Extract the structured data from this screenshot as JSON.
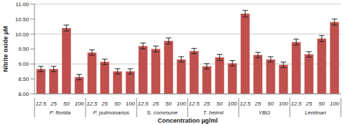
{
  "chart_data": {
    "type": "bar",
    "x_label": "Concentration µg/ml",
    "y_label": "Nitrite oxide µM",
    "categories": [
      "12.5",
      "25",
      "50",
      "100"
    ],
    "groups": [
      {
        "name": "P. florida",
        "values": [
          8.83,
          8.83,
          10.2,
          8.56
        ],
        "errors": [
          0.09,
          0.09,
          0.1,
          0.09
        ]
      },
      {
        "name": "P. pulmonarius",
        "values": [
          9.38,
          9.07,
          8.75,
          8.75
        ],
        "errors": [
          0.09,
          0.09,
          0.09,
          0.09
        ]
      },
      {
        "name": "S. commune",
        "values": [
          9.6,
          9.5,
          9.77,
          9.15
        ],
        "errors": [
          0.1,
          0.1,
          0.1,
          0.09
        ]
      },
      {
        "name": "T. heimii",
        "values": [
          9.43,
          8.92,
          9.22,
          9.02
        ],
        "errors": [
          0.09,
          0.09,
          0.1,
          0.09
        ]
      },
      {
        "name": "YBG",
        "values": [
          10.68,
          9.3,
          9.15,
          8.97
        ],
        "errors": [
          0.11,
          0.09,
          0.09,
          0.09
        ]
      },
      {
        "name": "Lentinan",
        "values": [
          9.73,
          9.32,
          9.85,
          10.4
        ],
        "errors": [
          0.1,
          0.09,
          0.1,
          0.1
        ]
      }
    ],
    "color": "#c0504d",
    "ylim": [
      8,
      11
    ],
    "yticks": [
      {
        "value": 8,
        "label": "8.00"
      },
      {
        "value": 8.5,
        "label": "8.50"
      },
      {
        "value": 9,
        "label": "9.00"
      },
      {
        "value": 9.5,
        "label": "9.50"
      },
      {
        "value": 10,
        "label": "10.00"
      },
      {
        "value": 10.5,
        "label": "10.50"
      },
      {
        "value": 11,
        "label": "11.00"
      }
    ],
    "grid": true
  }
}
